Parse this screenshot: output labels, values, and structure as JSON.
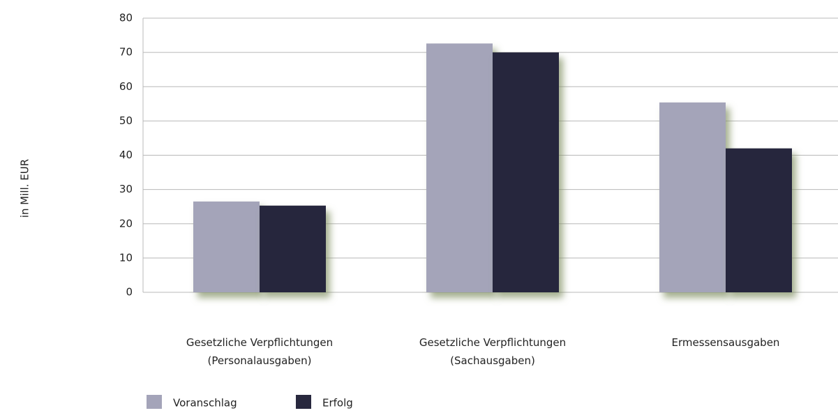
{
  "chart_data": {
    "type": "bar",
    "y_label": "in Mill. EUR",
    "categories": [
      "Gesetzliche Verpflichtungen\n(Personalausgaben)",
      "Gesetzliche Verpflichtungen\n(Sachausgaben)",
      "Ermessensausgaben"
    ],
    "series": [
      {
        "name": "Voranschlag",
        "color": "#a4a4b9",
        "values": [
          26.5,
          72.6,
          55.4
        ]
      },
      {
        "name": "Erfolg",
        "color": "#28283e",
        "values": [
          25.3,
          70,
          42
        ]
      }
    ],
    "ylim": [
      0,
      80
    ],
    "yticks": [
      0,
      10,
      20,
      30,
      40,
      50,
      60,
      70,
      80
    ],
    "grid": true,
    "legend": "bottom-left"
  }
}
